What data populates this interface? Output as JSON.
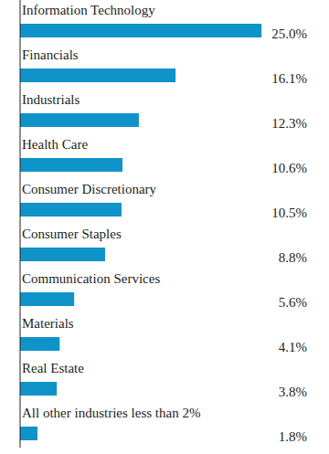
{
  "chart_data": {
    "type": "bar",
    "orientation": "horizontal",
    "categories": [
      "Information Technology",
      "Financials",
      "Industrials",
      "Health Care",
      "Consumer Discretionary",
      "Consumer Staples",
      "Communication Services",
      "Materials",
      "Real Estate",
      "All other industries less than 2%"
    ],
    "values": [
      25.0,
      16.1,
      12.3,
      10.6,
      10.5,
      8.8,
      5.6,
      4.1,
      3.8,
      1.8
    ],
    "value_labels": [
      "25.0%",
      "16.1%",
      "12.3%",
      "10.6%",
      "10.5%",
      "8.8%",
      "5.6%",
      "4.1%",
      "3.8%",
      "1.8%"
    ],
    "data_labels": true,
    "color": "#0f93c9",
    "xlim": [
      0,
      30
    ],
    "tick_labels": false,
    "grid": false
  }
}
